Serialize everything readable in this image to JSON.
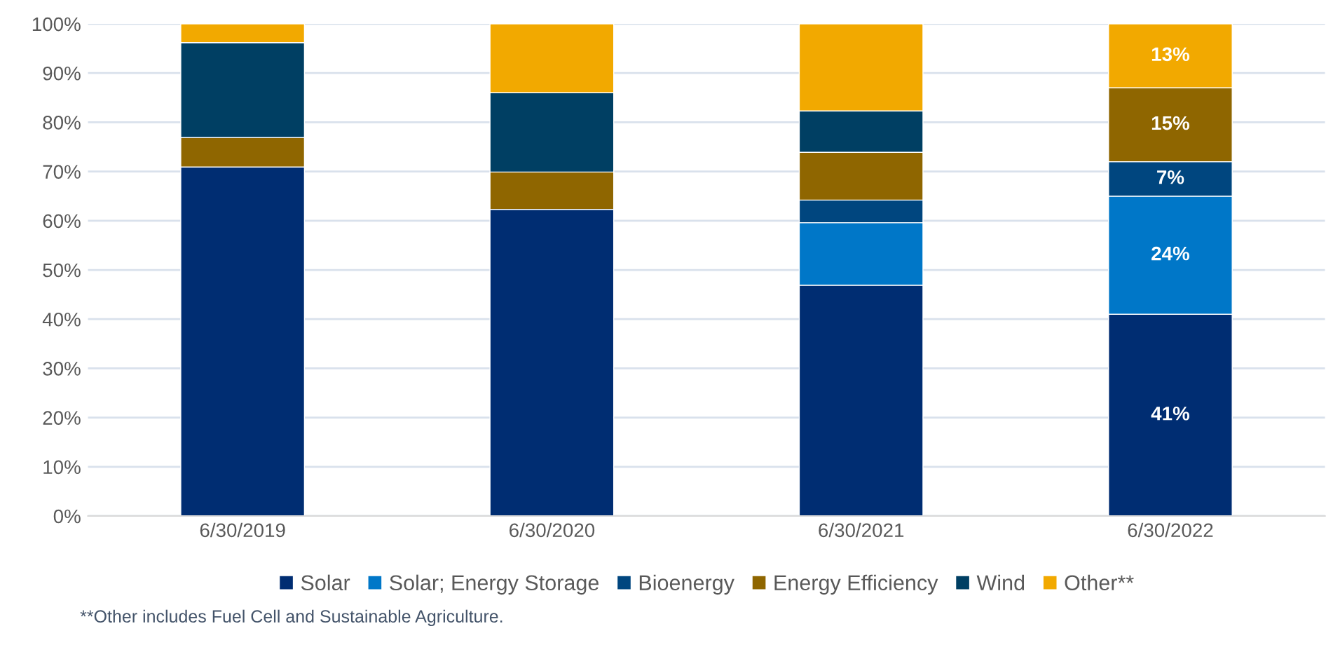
{
  "chart_data": {
    "type": "bar",
    "stacked": true,
    "categories": [
      "6/30/2019",
      "6/30/2020",
      "6/30/2021",
      "6/30/2022"
    ],
    "series": [
      {
        "name": "Solar",
        "color": "#002d72",
        "values": [
          70.9,
          62.3,
          46.9,
          41
        ],
        "value_labels": [
          null,
          null,
          null,
          "41%"
        ]
      },
      {
        "name": "Solar; Energy Storage",
        "color": "#0077c8",
        "values": [
          null,
          null,
          12.7,
          24
        ],
        "value_labels": [
          null,
          null,
          null,
          "24%"
        ]
      },
      {
        "name": "Bioenergy",
        "color": "#00467f",
        "values": [
          null,
          null,
          4.6,
          7
        ],
        "value_labels": [
          null,
          null,
          null,
          "7%"
        ]
      },
      {
        "name": "Energy Efficiency",
        "color": "#8f6600",
        "values": [
          6.0,
          7.6,
          9.7,
          15
        ],
        "value_labels": [
          null,
          null,
          null,
          "15%"
        ]
      },
      {
        "name": "Wind",
        "color": "#003f63",
        "values": [
          19.3,
          16.1,
          8.4,
          null
        ],
        "value_labels": [
          null,
          null,
          null,
          null
        ]
      },
      {
        "name": "Other**",
        "color": "#f2a900",
        "values": [
          3.8,
          14.0,
          17.7,
          13
        ],
        "value_labels": [
          null,
          null,
          null,
          "13%"
        ]
      }
    ],
    "ylim": [
      0,
      100
    ],
    "yticks": [
      {
        "value": 0,
        "label": "0%"
      },
      {
        "value": 10,
        "label": "10%"
      },
      {
        "value": 20,
        "label": "20%"
      },
      {
        "value": 30,
        "label": "30%"
      },
      {
        "value": 40,
        "label": "40%"
      },
      {
        "value": 50,
        "label": "50%"
      },
      {
        "value": 60,
        "label": "60%"
      },
      {
        "value": 70,
        "label": "70%"
      },
      {
        "value": 80,
        "label": "80%"
      },
      {
        "value": 90,
        "label": "90%"
      },
      {
        "value": 100,
        "label": "100%"
      }
    ],
    "grid": "y",
    "legend": "bottom",
    "annotations": [
      "**Other includes Fuel Cell and Sustainable Agriculture."
    ]
  }
}
